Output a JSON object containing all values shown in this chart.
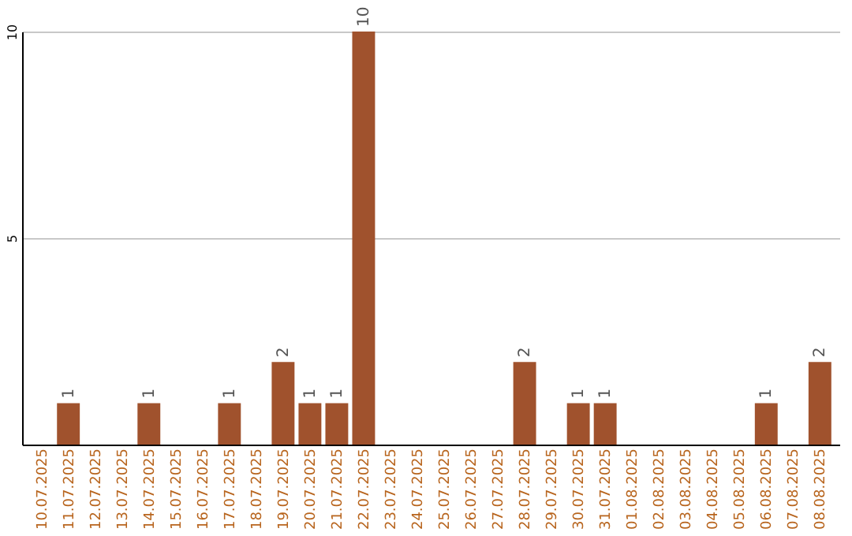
{
  "chart_data": {
    "type": "bar",
    "categories": [
      "10.07.2025",
      "11.07.2025",
      "12.07.2025",
      "13.07.2025",
      "14.07.2025",
      "15.07.2025",
      "16.07.2025",
      "17.07.2025",
      "18.07.2025",
      "19.07.2025",
      "20.07.2025",
      "21.07.2025",
      "22.07.2025",
      "23.07.2025",
      "24.07.2025",
      "25.07.2025",
      "26.07.2025",
      "27.07.2025",
      "28.07.2025",
      "29.07.2025",
      "30.07.2025",
      "31.07.2025",
      "01.08.2025",
      "02.08.2025",
      "03.08.2025",
      "04.08.2025",
      "05.08.2025",
      "06.08.2025",
      "07.08.2025",
      "08.08.2025"
    ],
    "values": [
      0,
      1,
      0,
      0,
      1,
      0,
      0,
      1,
      0,
      2,
      1,
      1,
      10,
      0,
      0,
      0,
      0,
      0,
      2,
      0,
      1,
      1,
      0,
      0,
      0,
      0,
      0,
      1,
      0,
      2
    ],
    "value_labels": [
      null,
      "1",
      null,
      null,
      "1",
      null,
      null,
      "1",
      null,
      "2",
      "1",
      "1",
      "10",
      null,
      null,
      null,
      null,
      null,
      "2",
      null,
      "1",
      "1",
      null,
      null,
      null,
      null,
      null,
      "1",
      null,
      "2"
    ],
    "color": "#a0522d",
    "ylim": [
      0,
      10
    ],
    "yticks": [
      5,
      10
    ],
    "grid": "y"
  }
}
